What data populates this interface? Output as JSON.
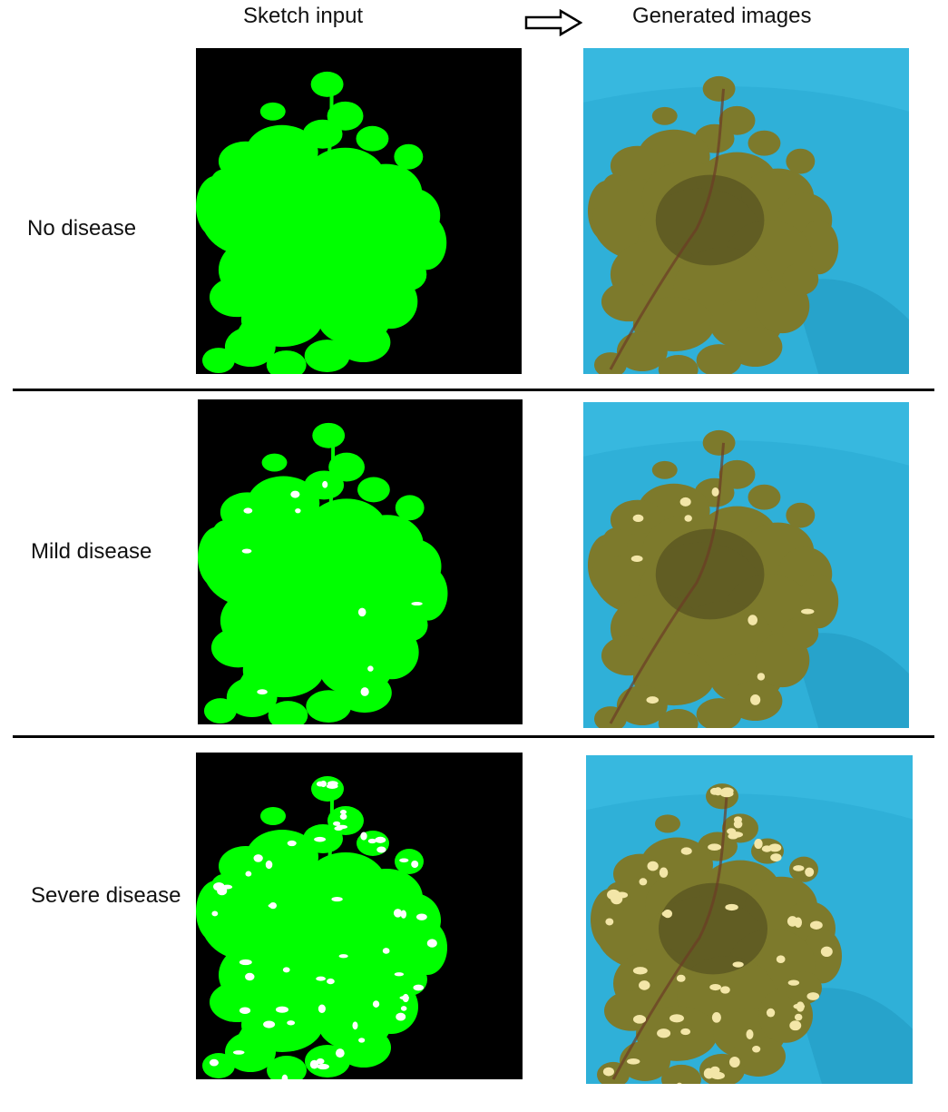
{
  "header": {
    "sketch_label": "Sketch input",
    "generated_label": "Generated images",
    "arrow_icon": "right-arrow-outline-icon"
  },
  "rows": [
    {
      "label": "No disease",
      "disease_spots": 0
    },
    {
      "label": "Mild disease",
      "disease_spots": 10
    },
    {
      "label": "Severe disease",
      "disease_spots": 60
    }
  ],
  "colors": {
    "sketch_background": "#000000",
    "sketch_plant": "#00ff00",
    "sketch_spot": "#ffffff",
    "photo_background": "#2fb0d8",
    "photo_plant": "#7d7a2c",
    "photo_spot": "#f3e6a8"
  }
}
